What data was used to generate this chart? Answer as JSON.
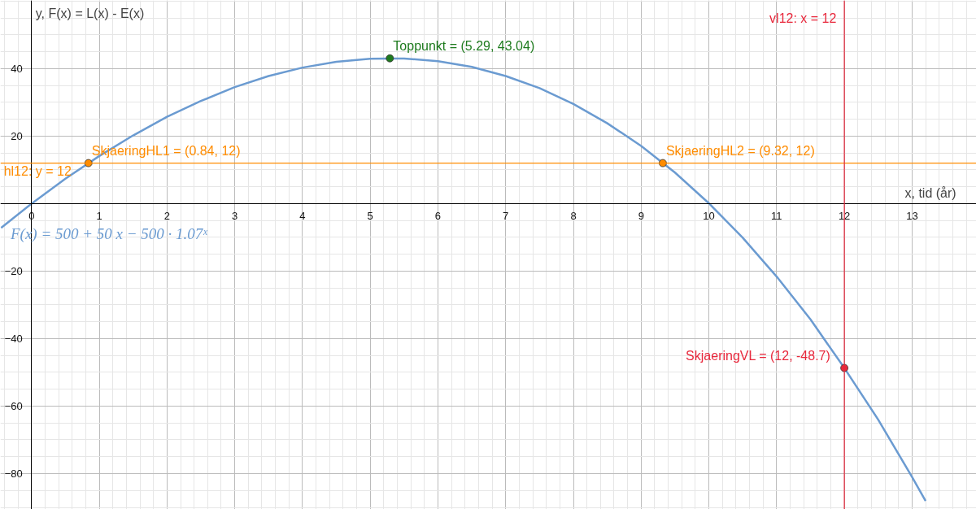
{
  "chart_data": {
    "type": "line",
    "xlabel": "x, tid (år)",
    "ylabel": "y, F(x) = L(x) - E(x)",
    "xlim": [
      -0.46,
      13.95
    ],
    "ylim": [
      -90.6,
      60.2
    ],
    "xticks": [
      0,
      1,
      2,
      3,
      4,
      5,
      6,
      7,
      8,
      9,
      10,
      11,
      12,
      13
    ],
    "yticks": [
      {
        "value": -80,
        "label": "−80"
      },
      {
        "value": -60,
        "label": "−60"
      },
      {
        "value": -40,
        "label": "−40"
      },
      {
        "value": -20,
        "label": "−20"
      },
      20,
      40
    ],
    "grid": true,
    "marker": "none",
    "line_style": "solid",
    "series": [
      {
        "name": "F(x) = 500 + 50 x − 500 · 1.07ˣ",
        "color": "#6b9bd1",
        "x": [
          -0.45,
          0,
          0.5,
          1,
          1.5,
          2,
          2.5,
          3,
          3.5,
          4,
          4.5,
          5,
          5.29,
          5.5,
          6,
          6.5,
          7,
          7.5,
          8,
          8.5,
          9,
          9.5,
          10,
          10.5,
          11,
          11.5,
          12,
          12.5,
          13,
          13.2
        ],
        "values": [
          -7.2,
          0,
          7.4,
          14.1,
          20.2,
          25.7,
          30.4,
          34.5,
          37.8,
          40.3,
          42.0,
          42.9,
          43.0,
          43.0,
          42.2,
          40.5,
          37.8,
          34.2,
          29.5,
          23.8,
          17.1,
          9.2,
          0.1,
          -10.1,
          -21.6,
          -34.3,
          -48.7,
          -64.0,
          -81.0,
          -88.1
        ]
      },
      {
        "type": "scatter",
        "marker": "circle",
        "color": "#ff8c00",
        "x": [
          0.84
        ],
        "values": [
          12
        ]
      },
      {
        "type": "scatter",
        "marker": "circle",
        "color": "#1e7b1e",
        "x": [
          5.29
        ],
        "values": [
          43.04
        ]
      },
      {
        "type": "scatter",
        "marker": "circle",
        "color": "#ff8c00",
        "x": [
          9.32
        ],
        "values": [
          12
        ]
      },
      {
        "type": "scatter",
        "marker": "circle",
        "color": "#e8283c",
        "x": [
          12
        ],
        "values": [
          -48.7
        ]
      }
    ],
    "ref_lines": [
      {
        "axis": "y",
        "value": 12,
        "label": "hl12: y = 12",
        "color": "#ff8c00"
      },
      {
        "axis": "x",
        "value": 12,
        "label": "vl12: x = 12",
        "color": "#e8283c"
      }
    ],
    "annotations": [
      {
        "text": "SkjaeringHL1 = (0.84, 12)",
        "x": 0.84,
        "y": 12
      },
      {
        "text": "Toppunkt = (5.29, 43.04)",
        "x": 5.29,
        "y": 43.04
      },
      {
        "text": "SkjaeringHL2 = (9.32, 12)",
        "x": 9.32,
        "y": 12
      },
      {
        "text": "SkjaeringVL = (12, -48.7)",
        "x": 12,
        "y": -48.7
      }
    ]
  }
}
